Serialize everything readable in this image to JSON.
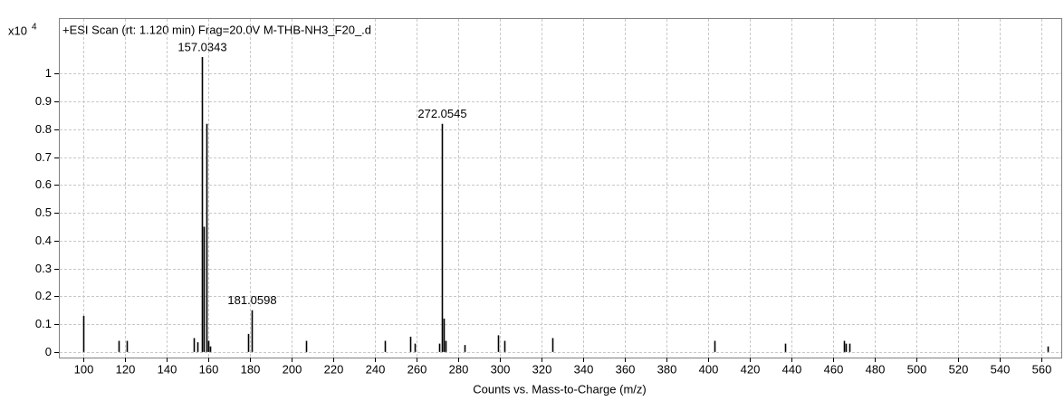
{
  "chart_data": {
    "type": "stick",
    "title": "+ESI Scan (rt: 1.120 min) Frag=20.0V M-THB-NH3_F20_.d",
    "x_label": "Counts vs. Mass-to-Charge (m/z)",
    "y_multiplier": {
      "base": "x10",
      "exponent": "4"
    },
    "x": [
      100,
      117,
      121,
      153,
      155,
      157.0343,
      158,
      159,
      160,
      161,
      179,
      181.0598,
      207,
      245,
      257,
      259,
      271,
      272.0545,
      273,
      274,
      283,
      299,
      302,
      325,
      403,
      437,
      465,
      466,
      468,
      563
    ],
    "values": [
      0.13,
      0.04,
      0.04,
      0.05,
      0.035,
      1.06,
      0.45,
      0.82,
      0.04,
      0.02,
      0.065,
      0.15,
      0.04,
      0.04,
      0.055,
      0.03,
      0.03,
      0.82,
      0.12,
      0.04,
      0.025,
      0.06,
      0.04,
      0.05,
      0.04,
      0.03,
      0.04,
      0.03,
      0.03,
      0.02
    ],
    "x_labels": [
      null,
      null,
      null,
      null,
      null,
      "157.0343",
      null,
      null,
      null,
      null,
      null,
      "181.0598",
      null,
      null,
      null,
      null,
      null,
      "272.0545",
      null,
      null,
      null,
      null,
      null,
      null,
      null,
      null,
      null,
      null,
      null,
      null
    ],
    "color": "#000000",
    "xlim": [
      88.3,
      569.5
    ],
    "ylim": [
      -0.02,
      1.2
    ],
    "xticks": [
      100,
      120,
      140,
      160,
      180,
      200,
      220,
      240,
      260,
      280,
      300,
      320,
      340,
      360,
      380,
      400,
      420,
      440,
      460,
      480,
      500,
      520,
      540,
      560
    ],
    "yticks": [
      0,
      0.1,
      0.2,
      0.3,
      0.4,
      0.5,
      0.6,
      0.7,
      0.8,
      0.9,
      1
    ],
    "grid": true
  }
}
